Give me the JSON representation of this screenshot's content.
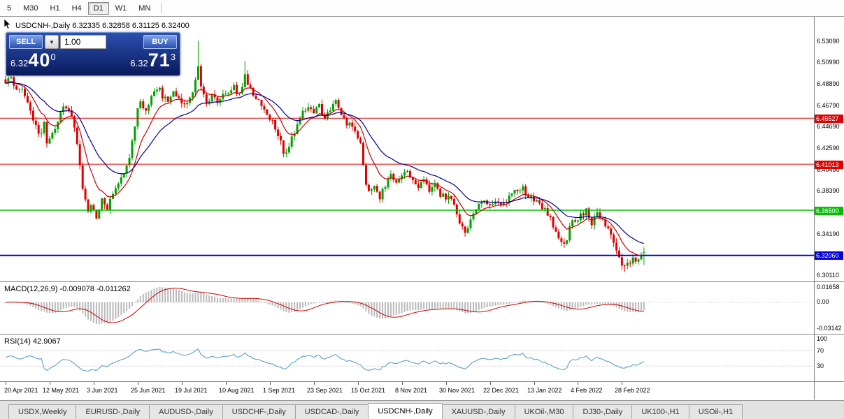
{
  "toolbar": {
    "timeframes": [
      {
        "label": "5",
        "active": false
      },
      {
        "label": "M30",
        "active": false
      },
      {
        "label": "H1",
        "active": false
      },
      {
        "label": "H4",
        "active": false
      },
      {
        "label": "D1",
        "active": true
      },
      {
        "label": "W1",
        "active": false
      },
      {
        "label": "MN",
        "active": false
      }
    ]
  },
  "chart": {
    "header": "USDCNH-,Daily 6.32335 6.32858 6.31125 6.32400",
    "trade_panel": {
      "sell_label": "SELL",
      "buy_label": "BUY",
      "volume": "1.00",
      "sell_price": {
        "prefix": "6.32",
        "big": "40",
        "sup": "0"
      },
      "buy_price": {
        "prefix": "6.32",
        "big": "71",
        "sup": "3"
      }
    },
    "hlines": [
      {
        "price": 6.45527,
        "label": "6.45527",
        "color": "#e00000",
        "width": 1
      },
      {
        "price": 6.41013,
        "label": "6.41013",
        "color": "#e00000",
        "width": 1
      },
      {
        "price": 6.365,
        "label": "6.36500",
        "color": "#00c000",
        "width": 1.4
      },
      {
        "price": 6.3206,
        "label": "6.32060",
        "color": "#0000d8",
        "width": 2
      }
    ],
    "price_axis_labels": [
      "6.53090",
      "6.50990",
      "6.48890",
      "6.46790",
      "6.44690",
      "6.42590",
      "6.40490",
      "6.38390",
      "6.36290",
      "6.34190",
      "6.32090",
      "6.30110"
    ]
  },
  "macd": {
    "label": "MACD(12,26,9) -0.009078 -0.011262",
    "axis": [
      "0.01658",
      "0.00",
      "-0.03142"
    ]
  },
  "rsi": {
    "label": "RSI(14) 42.9067",
    "axis": [
      "100",
      "70",
      "30"
    ]
  },
  "dates": [
    "20 Apr 2021",
    "12 May 2021",
    "3 Jun 2021",
    "25 Jun 2021",
    "19 Jul 2021",
    "10 Aug 2021",
    "1 Sep 2021",
    "23 Sep 2021",
    "15 Oct 2021",
    "8 Nov 2021",
    "30 Nov 2021",
    "22 Dec 2021",
    "13 Jan 2022",
    "4 Feb 2022",
    "28 Feb 2022"
  ],
  "tabs": [
    {
      "label": "USDX,Weekly",
      "active": false
    },
    {
      "label": "EURUSD-,Daily",
      "active": false
    },
    {
      "label": "AUDUSD-,Daily",
      "active": false
    },
    {
      "label": "USDCHF-,Daily",
      "active": false
    },
    {
      "label": "USDCAD-,Daily",
      "active": false
    },
    {
      "label": "USDCNH-,Daily",
      "active": true
    },
    {
      "label": "XAUUSD-,Daily",
      "active": false
    },
    {
      "label": "UKOil-,M30",
      "active": false
    },
    {
      "label": "DJ30-,Daily",
      "active": false
    },
    {
      "label": "UK100-,H1",
      "active": false
    },
    {
      "label": "USOil-,H1",
      "active": false
    }
  ],
  "chart_data": {
    "type": "candlestick",
    "symbol": "USDCNH-",
    "timeframe": "Daily",
    "num_candles": 233,
    "colors": {
      "up": "#00a200",
      "down": "#e00000"
    },
    "last_candle": {
      "open": 6.32335,
      "high": 6.32858,
      "low": 6.31125,
      "close": 6.324
    },
    "ohlc_display": {
      "open": "6.32335",
      "high": "6.32858",
      "low": "6.31125",
      "close": "6.32400"
    },
    "horizontal_levels": [
      6.45527,
      6.41013,
      6.365,
      6.3206
    ],
    "indicators": [
      {
        "name": "MACD",
        "params": [
          12,
          26,
          9
        ],
        "values": [
          -0.009078,
          -0.011262
        ],
        "scale": [
          0.01658,
          -0.03142
        ]
      },
      {
        "name": "RSI",
        "params": [
          14
        ],
        "value": 42.9067,
        "levels": [
          70,
          30
        ]
      }
    ],
    "ma": [
      {
        "period": 10,
        "color": "#cc0000"
      },
      {
        "period": 25,
        "color": "#000090"
      }
    ],
    "price_anchors": [
      [
        0,
        6.49
      ],
      [
        2,
        6.497
      ],
      [
        4,
        6.48
      ],
      [
        6,
        6.487
      ],
      [
        8,
        6.472
      ],
      [
        10,
        6.455
      ],
      [
        12,
        6.44
      ],
      [
        14,
        6.448
      ],
      [
        15,
        6.432
      ],
      [
        17,
        6.442
      ],
      [
        19,
        6.452
      ],
      [
        21,
        6.468
      ],
      [
        23,
        6.462
      ],
      [
        25,
        6.448
      ],
      [
        26,
        6.43
      ],
      [
        27,
        6.408
      ],
      [
        28,
        6.386
      ],
      [
        29,
        6.372
      ],
      [
        30,
        6.362
      ],
      [
        31,
        6.368
      ],
      [
        33,
        6.358
      ],
      [
        35,
        6.374
      ],
      [
        37,
        6.366
      ],
      [
        39,
        6.382
      ],
      [
        41,
        6.394
      ],
      [
        43,
        6.404
      ],
      [
        45,
        6.418
      ],
      [
        46,
        6.432
      ],
      [
        47,
        6.448
      ],
      [
        48,
        6.462
      ],
      [
        49,
        6.47
      ],
      [
        51,
        6.465
      ],
      [
        53,
        6.476
      ],
      [
        55,
        6.486
      ],
      [
        57,
        6.478
      ],
      [
        59,
        6.47
      ],
      [
        61,
        6.48
      ],
      [
        63,
        6.476
      ],
      [
        65,
        6.47
      ],
      [
        67,
        6.476
      ],
      [
        69,
        6.49
      ],
      [
        70,
        6.505
      ],
      [
        71,
        6.487
      ],
      [
        73,
        6.47
      ],
      [
        75,
        6.479
      ],
      [
        77,
        6.467
      ],
      [
        79,
        6.477
      ],
      [
        81,
        6.479
      ],
      [
        83,
        6.487
      ],
      [
        85,
        6.477
      ],
      [
        87,
        6.497
      ],
      [
        89,
        6.485
      ],
      [
        91,
        6.473
      ],
      [
        93,
        6.469
      ],
      [
        95,
        6.461
      ],
      [
        97,
        6.452
      ],
      [
        99,
        6.438
      ],
      [
        101,
        6.424
      ],
      [
        102,
        6.42
      ],
      [
        104,
        6.434
      ],
      [
        106,
        6.448
      ],
      [
        108,
        6.46
      ],
      [
        110,
        6.468
      ],
      [
        112,
        6.463
      ],
      [
        114,
        6.466
      ],
      [
        116,
        6.457
      ],
      [
        118,
        6.463
      ],
      [
        120,
        6.474
      ],
      [
        122,
        6.458
      ],
      [
        124,
        6.451
      ],
      [
        126,
        6.447
      ],
      [
        128,
        6.438
      ],
      [
        129,
        6.43
      ],
      [
        130,
        6.412
      ],
      [
        131,
        6.39
      ],
      [
        132,
        6.381
      ],
      [
        134,
        6.389
      ],
      [
        136,
        6.379
      ],
      [
        138,
        6.391
      ],
      [
        140,
        6.399
      ],
      [
        142,
        6.391
      ],
      [
        144,
        6.399
      ],
      [
        146,
        6.403
      ],
      [
        148,
        6.391
      ],
      [
        150,
        6.387
      ],
      [
        152,
        6.395
      ],
      [
        154,
        6.385
      ],
      [
        156,
        6.391
      ],
      [
        158,
        6.381
      ],
      [
        160,
        6.379
      ],
      [
        162,
        6.375
      ],
      [
        164,
        6.36
      ],
      [
        166,
        6.346
      ],
      [
        167,
        6.343
      ],
      [
        168,
        6.35
      ],
      [
        170,
        6.362
      ],
      [
        172,
        6.372
      ],
      [
        174,
        6.374
      ],
      [
        176,
        6.367
      ],
      [
        178,
        6.372
      ],
      [
        180,
        6.367
      ],
      [
        182,
        6.374
      ],
      [
        184,
        6.379
      ],
      [
        186,
        6.384
      ],
      [
        188,
        6.386
      ],
      [
        190,
        6.377
      ],
      [
        192,
        6.377
      ],
      [
        194,
        6.371
      ],
      [
        196,
        6.367
      ],
      [
        198,
        6.357
      ],
      [
        200,
        6.344
      ],
      [
        202,
        6.335
      ],
      [
        203,
        6.332
      ],
      [
        204,
        6.338
      ],
      [
        205,
        6.347
      ],
      [
        207,
        6.357
      ],
      [
        209,
        6.36
      ],
      [
        211,
        6.364
      ],
      [
        213,
        6.353
      ],
      [
        215,
        6.362
      ],
      [
        217,
        6.355
      ],
      [
        219,
        6.347
      ],
      [
        221,
        6.335
      ],
      [
        223,
        6.319
      ],
      [
        225,
        6.309
      ],
      [
        226,
        6.314
      ],
      [
        227,
        6.311
      ],
      [
        228,
        6.317
      ],
      [
        229,
        6.313
      ],
      [
        230,
        6.319
      ],
      [
        231,
        6.3215
      ],
      [
        232,
        6.324
      ]
    ],
    "spikes": [
      {
        "day": 70,
        "high": 6.531
      },
      {
        "day": 87,
        "high": 6.5115
      },
      {
        "day": 167,
        "low": 6.339
      },
      {
        "day": 203,
        "low": 6.3295
      },
      {
        "day": 225,
        "low": 6.3045
      }
    ]
  }
}
